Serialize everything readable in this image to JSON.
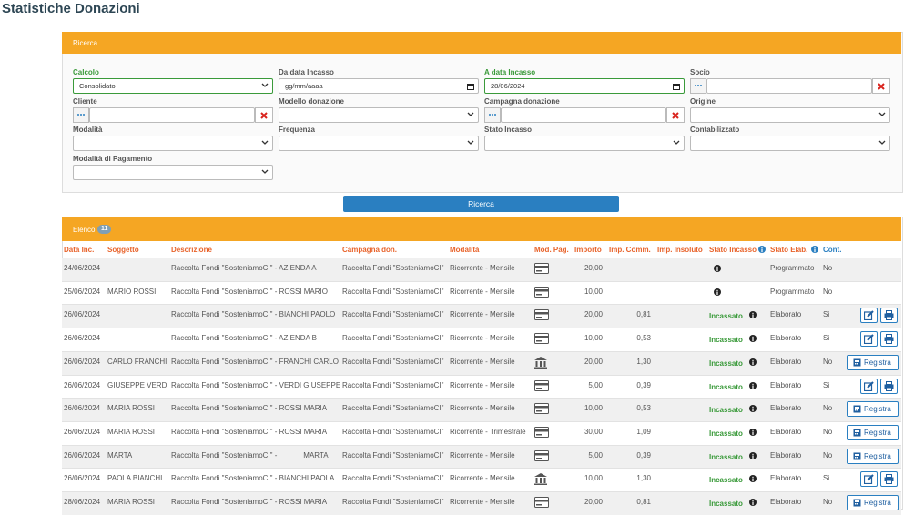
{
  "title": "Statistiche Donazioni",
  "search": {
    "header": "Ricerca",
    "button": "Ricerca",
    "fields": [
      {
        "label": "Calcolo",
        "value": "Consolidato",
        "kind": "select",
        "highlight": true
      },
      {
        "label": "Da data Incasso",
        "value": "gg/mm/aaaa",
        "kind": "date"
      },
      {
        "label": "A data Incasso",
        "value": "28/06/2024",
        "kind": "date",
        "highlight": true
      },
      {
        "label": "Socio",
        "kind": "lookup"
      },
      {
        "label": "Cliente",
        "kind": "lookup"
      },
      {
        "label": "Modello donazione",
        "kind": "select"
      },
      {
        "label": "Campagna donazione",
        "kind": "lookup"
      },
      {
        "label": "Origine",
        "kind": "select"
      },
      {
        "label": "Modalità",
        "kind": "select"
      },
      {
        "label": "Frequenza",
        "kind": "select"
      },
      {
        "label": "Stato Incasso",
        "kind": "select"
      },
      {
        "label": "Contabilizzato",
        "kind": "select"
      },
      {
        "label": "Modalità di Pagamento",
        "kind": "select"
      }
    ]
  },
  "list": {
    "header": "Elenco",
    "count": "11",
    "columns": [
      "Data Inc.",
      "Soggetto",
      "Descrizione",
      "Campagna don.",
      "Modalità",
      "Mod. Pag.",
      "Importo",
      "Imp. Comm.",
      "Imp. Insoluto",
      "Stato Incasso",
      "Stato Elab.",
      "Cont."
    ],
    "rows": [
      {
        "date": "24/06/2024",
        "description": "Raccolta Fondi \"SosteniamoCI\" - AZIENDA A",
        "campaign": "Raccolta Fondi \"SosteniamoCI\"",
        "mode": "Ricorrente - Mensile",
        "payment": "card",
        "amount": "20,00",
        "status_elab": "Programmato",
        "cont": "No"
      },
      {
        "date": "25/06/2024",
        "subject": "MARIO ROSSI",
        "description": "Raccolta Fondi \"SosteniamoCI\" - ROSSI MARIO",
        "campaign": "Raccolta Fondi \"SosteniamoCI\"",
        "mode": "Ricorrente - Mensile",
        "payment": "card",
        "amount": "10,00",
        "status_elab": "Programmato",
        "cont": "No"
      },
      {
        "date": "26/06/2024",
        "description": "Raccolta Fondi \"SosteniamoCI\" - BIANCHI PAOLO",
        "campaign": "Raccolta Fondi \"SosteniamoCI\"",
        "mode": "Ricorrente - Mensile",
        "payment": "card",
        "amount": "20,00",
        "commission": "0,81",
        "status": "Incassato",
        "status_elab": "Elaborato",
        "cont": "Si"
      },
      {
        "date": "26/06/2024",
        "description": "Raccolta Fondi \"SosteniamoCI\" - AZIENDA B",
        "campaign": "Raccolta Fondi \"SosteniamoCI\"",
        "mode": "Ricorrente - Mensile",
        "payment": "card",
        "amount": "10,00",
        "commission": "0,53",
        "status": "Incassato",
        "status_elab": "Elaborato",
        "cont": "Si"
      },
      {
        "date": "26/06/2024",
        "subject": "CARLO FRANCHI",
        "description": "Raccolta Fondi \"SosteniamoCI\" - FRANCHI CARLO",
        "campaign": "Raccolta Fondi \"SosteniamoCI\"",
        "mode": "Ricorrente - Mensile",
        "payment": "bank",
        "amount": "20,00",
        "commission": "1,30",
        "status": "Incassato",
        "status_elab": "Elaborato",
        "cont": "No",
        "action": "Registra"
      },
      {
        "date": "26/06/2024",
        "subject": "GIUSEPPE VERDI",
        "description": "Raccolta Fondi \"SosteniamoCI\" - VERDI GIUSEPPE",
        "campaign": "Raccolta Fondi \"SosteniamoCI\"",
        "mode": "Ricorrente - Mensile",
        "payment": "card",
        "amount": "5,00",
        "commission": "0,39",
        "status": "Incassato",
        "status_elab": "Elaborato",
        "cont": "Si"
      },
      {
        "date": "26/06/2024",
        "subject": "MARIA ROSSI",
        "description": "Raccolta Fondi \"SosteniamoCI\" - ROSSI MARIA",
        "campaign": "Raccolta Fondi \"SosteniamoCI\"",
        "mode": "Ricorrente - Mensile",
        "payment": "card",
        "amount": "10,00",
        "commission": "0,53",
        "status": "Incassato",
        "status_elab": "Elaborato",
        "cont": "No",
        "action": "Registra"
      },
      {
        "date": "26/06/2024",
        "subject": "MARIA ROSSI",
        "description": "Raccolta Fondi \"SosteniamoCI\" - ROSSI MARIA",
        "campaign": "Raccolta Fondi \"SosteniamoCI\"",
        "mode": "Ricorrente - Trimestrale",
        "payment": "card",
        "amount": "30,00",
        "commission": "1,09",
        "status": "Incassato",
        "status_elab": "Elaborato",
        "cont": "No",
        "action": "Registra"
      },
      {
        "date": "26/06/2024",
        "subject": "MARTA",
        "description": "Raccolta Fondi \"SosteniamoCI\" -             MARTA",
        "campaign": "Raccolta Fondi \"SosteniamoCI\"",
        "mode": "Ricorrente - Mensile",
        "payment": "card",
        "amount": "5,00",
        "commission": "0,39",
        "status": "Incassato",
        "status_elab": "Elaborato",
        "cont": "No",
        "action": "Registra"
      },
      {
        "date": "26/06/2024",
        "subject": "PAOLA BIANCHI",
        "description": "Raccolta Fondi \"SosteniamoCI\" - BIANCHI PAOLA",
        "campaign": "Raccolta Fondi \"SosteniamoCI\"",
        "mode": "Ricorrente - Mensile",
        "payment": "bank",
        "amount": "10,00",
        "commission": "1,30",
        "status": "Incassato",
        "status_elab": "Elaborato",
        "cont": "Si"
      },
      {
        "date": "28/06/2024",
        "subject": "MARIA ROSSI",
        "description": "Raccolta Fondi \"SosteniamoCI\" - ROSSI MARIA",
        "campaign": "Raccolta Fondi \"SosteniamoCI\"",
        "mode": "Ricorrente - Mensile",
        "payment": "card",
        "amount": "20,00",
        "commission": "0,81",
        "status": "Incassato",
        "status_elab": "Elaborato",
        "cont": "No",
        "action": "Registra"
      }
    ]
  }
}
